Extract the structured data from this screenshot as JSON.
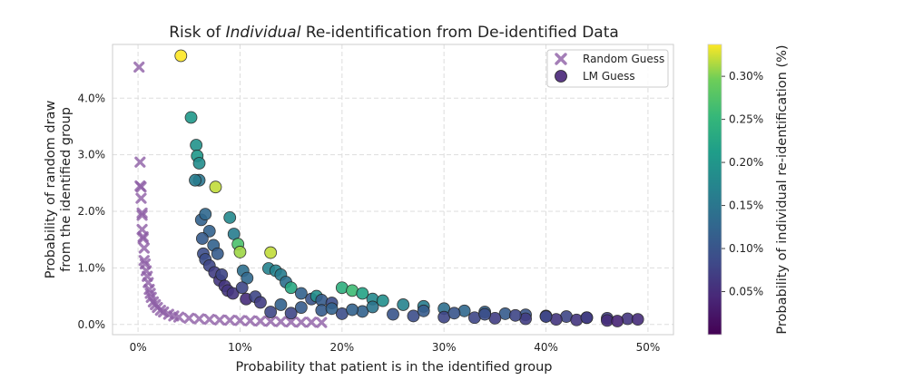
{
  "chart_data": {
    "type": "scatter",
    "title_parts": [
      "Risk of ",
      "Individual",
      " Re-identification from De-identified Data"
    ],
    "xlabel": "Probability that patient is in the identified group",
    "ylabel_lines": [
      "Probability of random draw",
      "from the identified group"
    ],
    "xlim": [
      -0.025,
      0.525
    ],
    "ylim": [
      -0.0018,
      0.0495
    ],
    "x_ticks": [
      0,
      0.1,
      0.2,
      0.3,
      0.4,
      0.5
    ],
    "x_tick_labels": [
      "0%",
      "10%",
      "20%",
      "30%",
      "40%",
      "50%"
    ],
    "y_ticks": [
      0,
      0.01,
      0.02,
      0.03,
      0.04
    ],
    "y_tick_labels": [
      "0.0%",
      "1.0%",
      "2.0%",
      "3.0%",
      "4.0%"
    ],
    "grid": true,
    "legend": {
      "position": "top-right",
      "entries": [
        {
          "label": "Random Guess",
          "marker": "x",
          "color": "#8e5fa6"
        },
        {
          "label": "LM Guess",
          "marker": "circle",
          "color": "#5a3b85"
        }
      ]
    },
    "colorbar": {
      "label": "Probability of individual re-identification (%)",
      "range": [
        0.0,
        0.00337
      ],
      "ticks": [
        0.0005,
        0.001,
        0.0015,
        0.002,
        0.0025,
        0.003
      ],
      "tick_labels": [
        "0.05%",
        "0.10%",
        "0.15%",
        "0.20%",
        "0.25%",
        "0.30%"
      ],
      "colormap": "viridis"
    },
    "series": [
      {
        "name": "Random Guess",
        "marker": "x",
        "color": "#8e5fa6",
        "x": [
          0.001,
          0.002,
          0.002,
          0.003,
          0.003,
          0.004,
          0.004,
          0.004,
          0.005,
          0.005,
          0.006,
          0.006,
          0.007,
          0.008,
          0.009,
          0.01,
          0.011,
          0.012,
          0.013,
          0.015,
          0.017,
          0.019,
          0.022,
          0.025,
          0.03,
          0.035,
          0.04,
          0.05,
          0.06,
          0.07,
          0.08,
          0.09,
          0.1,
          0.11,
          0.12,
          0.13,
          0.14,
          0.15,
          0.16,
          0.17,
          0.18
        ],
        "y": [
          0.0455,
          0.0287,
          0.0245,
          0.0243,
          0.0223,
          0.0197,
          0.0193,
          0.0168,
          0.0155,
          0.0152,
          0.0135,
          0.0113,
          0.0107,
          0.0095,
          0.0085,
          0.0074,
          0.0062,
          0.0055,
          0.0048,
          0.004,
          0.0035,
          0.003,
          0.0025,
          0.0022,
          0.0018,
          0.0015,
          0.0013,
          0.0011,
          0.001,
          0.0009,
          0.0008,
          0.00075,
          0.0007,
          0.00065,
          0.0006,
          0.00055,
          0.0005,
          0.00045,
          0.0004,
          0.0004,
          0.00035
        ]
      },
      {
        "name": "LM Guess",
        "marker": "circle",
        "x": [
          0.042,
          0.052,
          0.057,
          0.058,
          0.06,
          0.06,
          0.056,
          0.062,
          0.066,
          0.076,
          0.07,
          0.063,
          0.064,
          0.066,
          0.07,
          0.074,
          0.078,
          0.075,
          0.08,
          0.082,
          0.085,
          0.088,
          0.09,
          0.094,
          0.098,
          0.1,
          0.103,
          0.107,
          0.093,
          0.102,
          0.106,
          0.115,
          0.12,
          0.13,
          0.128,
          0.135,
          0.14,
          0.145,
          0.15,
          0.16,
          0.17,
          0.175,
          0.18,
          0.19,
          0.2,
          0.21,
          0.22,
          0.23,
          0.24,
          0.26,
          0.28,
          0.3,
          0.32,
          0.34,
          0.36,
          0.38,
          0.4,
          0.42,
          0.44,
          0.46,
          0.48,
          0.49,
          0.13,
          0.15,
          0.18,
          0.2,
          0.22,
          0.25,
          0.27,
          0.3,
          0.33,
          0.35,
          0.38,
          0.41,
          0.43,
          0.46,
          0.47,
          0.14,
          0.16,
          0.19,
          0.21,
          0.23,
          0.28,
          0.31,
          0.34,
          0.37,
          0.4,
          0.44
        ],
        "y": [
          0.0475,
          0.0366,
          0.0317,
          0.0298,
          0.0285,
          0.0255,
          0.0255,
          0.0185,
          0.0195,
          0.0243,
          0.0165,
          0.0152,
          0.0125,
          0.0115,
          0.0104,
          0.014,
          0.0125,
          0.0092,
          0.0078,
          0.0088,
          0.0068,
          0.006,
          0.0189,
          0.016,
          0.0142,
          0.0128,
          0.0095,
          0.0082,
          0.0055,
          0.0065,
          0.0045,
          0.0049,
          0.0039,
          0.0127,
          0.0099,
          0.0095,
          0.0088,
          0.0075,
          0.0065,
          0.0055,
          0.0045,
          0.005,
          0.0043,
          0.0038,
          0.0065,
          0.006,
          0.0055,
          0.0045,
          0.0042,
          0.0035,
          0.0032,
          0.0028,
          0.0024,
          0.0022,
          0.0019,
          0.0017,
          0.0015,
          0.0014,
          0.0012,
          0.0011,
          0.001,
          0.0009,
          0.0022,
          0.002,
          0.0025,
          0.0019,
          0.0023,
          0.0018,
          0.0015,
          0.0013,
          0.0012,
          0.0011,
          0.001,
          0.0009,
          0.0008,
          0.0007,
          0.0006,
          0.0035,
          0.003,
          0.0028,
          0.0026,
          0.0031,
          0.0024,
          0.002,
          0.0018,
          0.0016,
          0.0014,
          0.0012
        ],
        "individual_prob": [
          0.00337,
          0.00205,
          0.00195,
          0.00205,
          0.00185,
          0.0015,
          0.0016,
          0.0012,
          0.0013,
          0.0032,
          0.0012,
          0.0011,
          0.0009,
          0.0009,
          0.0008,
          0.0012,
          0.0011,
          0.0007,
          0.0006,
          0.0008,
          0.0006,
          0.0006,
          0.0018,
          0.0016,
          0.0027,
          0.0031,
          0.0014,
          0.0013,
          0.0006,
          0.0008,
          0.0005,
          0.0008,
          0.0007,
          0.0032,
          0.0017,
          0.0017,
          0.0016,
          0.0014,
          0.0023,
          0.0012,
          0.001,
          0.0019,
          0.0011,
          0.0009,
          0.0024,
          0.0026,
          0.0022,
          0.0018,
          0.0019,
          0.0017,
          0.0016,
          0.0014,
          0.0013,
          0.0012,
          0.0011,
          0.001,
          0.0009,
          0.0008,
          0.0007,
          0.0007,
          0.0006,
          0.0005,
          0.0008,
          0.0008,
          0.0011,
          0.0009,
          0.0012,
          0.001,
          0.0009,
          0.0008,
          0.0008,
          0.0007,
          0.0007,
          0.0006,
          0.0006,
          0.0005,
          0.0004,
          0.0012,
          0.0011,
          0.0012,
          0.0012,
          0.0015,
          0.0011,
          0.001,
          0.0009,
          0.0008,
          0.0008,
          0.0007
        ]
      }
    ]
  }
}
